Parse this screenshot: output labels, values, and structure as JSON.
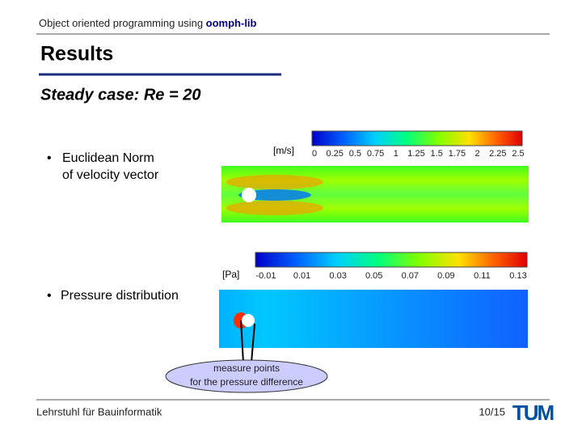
{
  "header": {
    "text": "Object oriented programming using ",
    "highlight": "oomph-lib"
  },
  "title": "Results",
  "subtitle": "Steady case: Re = 20",
  "velocity": {
    "bullet": [
      "Euclidean Norm",
      "of velocity vector"
    ],
    "unit": "[m/s]",
    "ticks": [
      "0",
      "0.25",
      "0.5",
      "0.75",
      "1",
      "1.25",
      "1.5",
      "1.75",
      "2",
      "2.25",
      "2.5"
    ]
  },
  "pressure": {
    "bullet": "Pressure distribution",
    "unit": "[Pa]",
    "ticks": [
      "-0.01",
      "0.01",
      "0.03",
      "0.05",
      "0.07",
      "0.09",
      "0.11",
      "0.13"
    ]
  },
  "callout": [
    "measure points",
    "for the pressure difference"
  ],
  "footer": {
    "institute": "Lehrstuhl für Bauinformatik",
    "page": "10/15",
    "logo": "TUM"
  }
}
